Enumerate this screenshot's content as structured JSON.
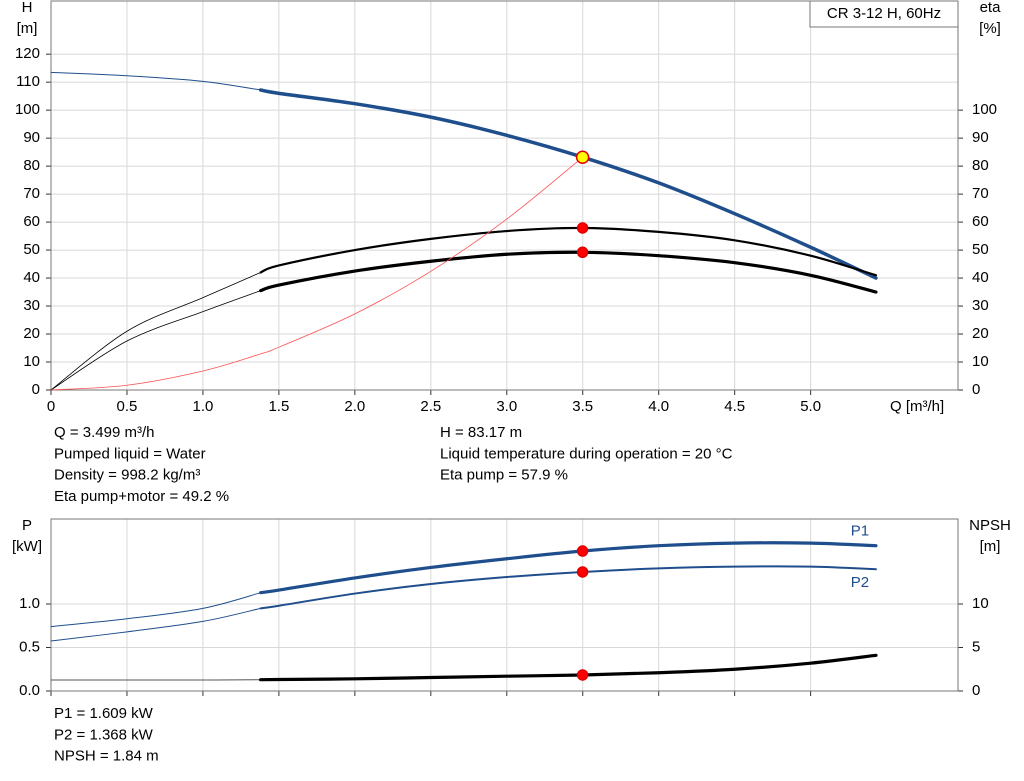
{
  "chart_data": [
    {
      "type": "line",
      "title": "CR 3-12 H, 60Hz",
      "xlabel": "Q [m³/h]",
      "ylabel": "H",
      "ylabel_unit": "[m]",
      "y2label": "eta",
      "y2label_unit": "[%]",
      "x": [
        0,
        0.5,
        1.0,
        1.38,
        1.5,
        2.0,
        2.5,
        3.0,
        3.5,
        4.0,
        4.5,
        5.0,
        5.43
      ],
      "xlim": [
        0,
        5.97
      ],
      "xticks": [
        0,
        0.5,
        {
          "value": 1,
          "label": "1.0"
        },
        1.5,
        {
          "value": 2,
          "label": "2.0"
        },
        2.5,
        {
          "value": 3,
          "label": "3.0"
        },
        3.5,
        {
          "value": 4,
          "label": "4.0"
        },
        4.5,
        {
          "value": 5,
          "label": "5.0"
        }
      ],
      "ylim": [
        0,
        139
      ],
      "yticks": [
        0,
        10,
        20,
        30,
        40,
        50,
        60,
        70,
        80,
        90,
        100,
        110,
        120
      ],
      "y2lim": [
        0,
        139
      ],
      "y2ticks": [
        0,
        10,
        20,
        30,
        40,
        50,
        60,
        70,
        80,
        90,
        100
      ],
      "grid": true,
      "series": [
        {
          "color": "#1f4e8c",
          "width": 1,
          "values": [
            113.5,
            112.3,
            110.3,
            107.2,
            null,
            null,
            null,
            null,
            null,
            null,
            null,
            null,
            null
          ]
        },
        {
          "color": "#1f4e8c",
          "width": 3.5,
          "values": [
            null,
            null,
            null,
            107.2,
            106,
            102.3,
            97.5,
            91,
            83.2,
            74,
            63,
            51,
            40
          ]
        },
        {
          "color": "#000000",
          "width": 0.8,
          "axis": "y2",
          "values": [
            0,
            21,
            33,
            42,
            null,
            null,
            null,
            null,
            null,
            null,
            null,
            null,
            null
          ]
        },
        {
          "color": "#000000",
          "width": 2.2,
          "axis": "y2",
          "values": [
            null,
            null,
            null,
            42,
            44.5,
            50,
            54,
            56.8,
            57.9,
            56.5,
            53.5,
            48,
            41
          ]
        },
        {
          "color": "#000000",
          "width": 0.8,
          "axis": "y2",
          "values": [
            0,
            17.5,
            28,
            35.5,
            null,
            null,
            null,
            null,
            null,
            null,
            null,
            null,
            null
          ]
        },
        {
          "color": "#000000",
          "width": 3.2,
          "axis": "y2",
          "values": [
            null,
            null,
            null,
            35.5,
            37.5,
            42.5,
            46,
            48.5,
            49.2,
            48,
            45.5,
            41,
            35
          ]
        },
        {
          "color": "#ff5050",
          "width": 0.8,
          "values": [
            0,
            1.7,
            6.8,
            12.9,
            15.3,
            27.2,
            42.4,
            61.1,
            83.2,
            null,
            null,
            null,
            null
          ]
        }
      ],
      "markers": [
        {
          "x": 3.499,
          "y": 83.17,
          "color": "#ffff00"
        },
        {
          "x": 3.499,
          "y": 57.9,
          "color": "#ff0000",
          "axis": "y2"
        },
        {
          "x": 3.499,
          "y": 49.2,
          "color": "#ff0000",
          "axis": "y2"
        }
      ]
    },
    {
      "type": "line",
      "ylabel": "P",
      "ylabel_unit": "[kW]",
      "y2label": "NPSH",
      "y2label_unit": "[m]",
      "x": [
        0,
        0.5,
        1.0,
        1.38,
        1.5,
        2.0,
        2.5,
        3.0,
        3.5,
        4.0,
        4.5,
        5.0,
        5.43
      ],
      "xlim": [
        0,
        5.97
      ],
      "xticks": [
        0,
        0.5,
        1,
        1.5,
        2,
        2.5,
        3,
        3.5,
        4,
        4.5,
        5
      ],
      "ylim": [
        0,
        1.977
      ],
      "yticks": [
        {
          "value": 0,
          "label": "0.0"
        },
        0.5,
        {
          "value": 1,
          "label": "1.0"
        }
      ],
      "y2lim": [
        0,
        19.77
      ],
      "y2ticks": [
        0,
        5,
        10
      ],
      "grid": true,
      "series": [
        {
          "color": "#1f4e8c",
          "width": 1,
          "values": [
            0.74,
            0.83,
            0.95,
            1.13,
            null,
            null,
            null,
            null,
            null,
            null,
            null,
            null,
            null
          ]
        },
        {
          "name": "P1",
          "color": "#1f4e8c",
          "width": 3.2,
          "values": [
            null,
            null,
            null,
            1.13,
            1.16,
            1.3,
            1.42,
            1.52,
            1.609,
            1.67,
            1.7,
            1.7,
            1.67
          ]
        },
        {
          "color": "#1f4e8c",
          "width": 1,
          "values": [
            0.575,
            0.68,
            0.8,
            0.95,
            null,
            null,
            null,
            null,
            null,
            null,
            null,
            null,
            null
          ]
        },
        {
          "name": "P2",
          "color": "#1f4e8c",
          "width": 2,
          "values": [
            null,
            null,
            null,
            0.95,
            0.98,
            1.12,
            1.23,
            1.31,
            1.368,
            1.41,
            1.43,
            1.43,
            1.4
          ]
        },
        {
          "color": "#555555",
          "width": 1,
          "axis": "y2",
          "values": [
            1.26,
            1.26,
            1.26,
            1.3,
            null,
            null,
            null,
            null,
            null,
            null,
            null,
            null,
            null
          ]
        },
        {
          "color": "#000000",
          "width": 3.2,
          "axis": "y2",
          "values": [
            null,
            null,
            null,
            1.3,
            1.32,
            1.4,
            1.55,
            1.7,
            1.84,
            2.1,
            2.5,
            3.2,
            4.1
          ]
        }
      ],
      "markers": [
        {
          "x": 3.499,
          "y": 1.609,
          "color": "#ff0000"
        },
        {
          "x": 3.499,
          "y": 1.368,
          "color": "#ff0000"
        },
        {
          "x": 3.499,
          "y": 1.84,
          "color": "#ff0000",
          "axis": "y2"
        }
      ]
    }
  ],
  "readout": {
    "head_left": [
      "Q = 3.499 m³/h",
      "Pumped liquid = Water",
      "Density = 998.2 kg/m³",
      "Eta pump+motor = 49.2 %"
    ],
    "head_right": [
      "H = 83.17 m",
      "Liquid temperature during operation = 20 °C",
      "Eta pump = 57.9 %"
    ],
    "power": [
      "P1 = 1.609 kW",
      "P2 = 1.368 kW",
      "NPSH = 1.84 m"
    ]
  }
}
